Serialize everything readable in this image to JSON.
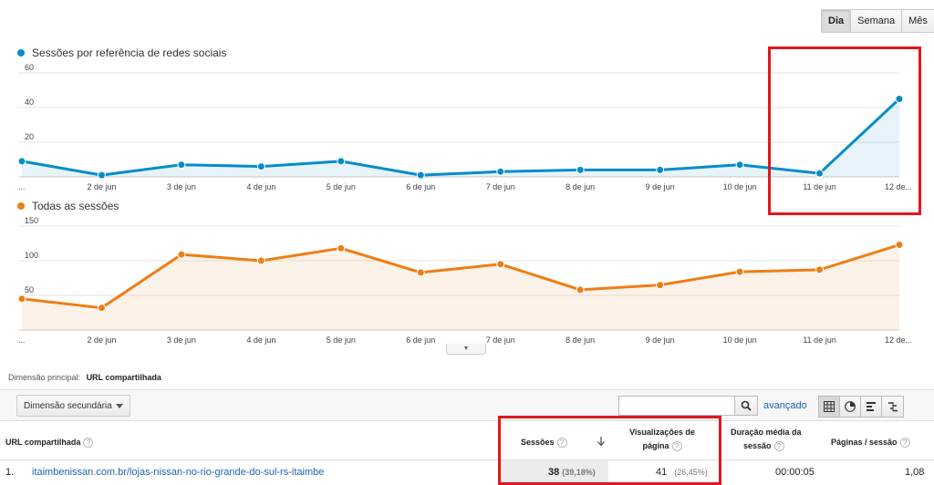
{
  "period_buttons": {
    "day": "Dia",
    "week": "Semana",
    "month": "Mês"
  },
  "chart_data": [
    {
      "type": "area",
      "title": "Sessões por referência de redes sociais",
      "color": "#058dc7",
      "categories": [
        "...",
        "2 de jun",
        "3 de jun",
        "4 de jun",
        "5 de jun",
        "6 de jun",
        "7 de jun",
        "8 de jun",
        "9 de jun",
        "10 de jun",
        "11 de jun",
        "12 de..."
      ],
      "values": [
        9,
        1,
        7,
        6,
        9,
        1,
        3,
        4,
        4,
        7,
        2,
        45
      ],
      "y_ticks": [
        "20",
        "40",
        "60"
      ],
      "ylim": [
        0,
        60
      ]
    },
    {
      "type": "area",
      "title": "Todas as sessões",
      "color": "#ed7e17",
      "categories": [
        "...",
        "2 de jun",
        "3 de jun",
        "4 de jun",
        "5 de jun",
        "6 de jun",
        "7 de jun",
        "8 de jun",
        "9 de jun",
        "10 de jun",
        "11 de jun",
        "12 de..."
      ],
      "values": [
        45,
        32,
        109,
        100,
        118,
        83,
        95,
        58,
        65,
        84,
        87,
        123
      ],
      "y_ticks": [
        "50",
        "100",
        "150"
      ],
      "ylim": [
        0,
        150
      ]
    }
  ],
  "dimension": {
    "label": "Dimensão principal:",
    "value": "URL compartilhada"
  },
  "toolbar": {
    "secondary_dimension": "Dimensão secundária",
    "advanced": "avançado",
    "search_value": ""
  },
  "table": {
    "headers": {
      "url": "URL compartilhada",
      "sessions": "Sessões",
      "pageviews_1": "Visualizações de",
      "pageviews_2": "página",
      "duration_1": "Duração média da",
      "duration_2": "sessão",
      "pages": "Páginas / sessão"
    },
    "rows": [
      {
        "index": "1.",
        "url": "itaimbenissan.com.br/lojas-nissan-no-rio-grande-do-sul-rs-itaimbe",
        "sessions": "38",
        "sessions_pct": "(39,18%)",
        "pageviews": "41",
        "pageviews_pct": "(26,45%)",
        "duration": "00:00:05",
        "pages": "1,08"
      }
    ]
  }
}
